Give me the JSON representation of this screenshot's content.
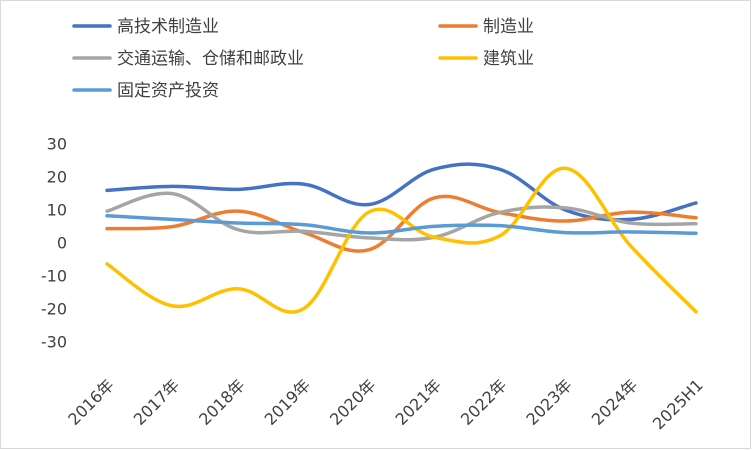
{
  "chart_data": {
    "type": "line",
    "title": "",
    "xlabel": "",
    "ylabel": "",
    "categories": [
      "2016年",
      "2017年",
      "2018年",
      "2019年",
      "2020年",
      "2021年",
      "2022年",
      "2023年",
      "2024年",
      "2025H1"
    ],
    "yticks": [
      "30",
      "20",
      "10",
      "0",
      "-10",
      "-20",
      "-30"
    ],
    "ylim": [
      -30,
      30
    ],
    "grid": false,
    "legend_position": "top",
    "series": [
      {
        "name": "高技术制造业",
        "color": "#4472C4",
        "values": [
          15.8,
          17.0,
          16.1,
          17.7,
          11.5,
          22.2,
          22.2,
          9.9,
          7.0,
          12.0
        ]
      },
      {
        "name": "制造业",
        "color": "#ED7D31",
        "values": [
          4.2,
          4.8,
          9.5,
          3.1,
          -2.2,
          13.5,
          9.1,
          6.5,
          9.2,
          7.5
        ]
      },
      {
        "name": "交通运输、仓储和邮政业",
        "color": "#A5A5A5",
        "values": [
          9.5,
          14.8,
          3.9,
          3.4,
          1.4,
          1.6,
          9.1,
          10.5,
          5.9,
          5.7
        ]
      },
      {
        "name": "建筑业",
        "color": "#FFC000",
        "values": [
          -6.5,
          -19.2,
          -14.0,
          -20.1,
          9.2,
          1.6,
          2.0,
          22.5,
          -1.0,
          -21.0
        ]
      },
      {
        "name": "固定资产投资",
        "color": "#5B9BD5",
        "values": [
          8.1,
          7.0,
          5.9,
          5.4,
          2.9,
          4.9,
          5.1,
          3.0,
          3.2,
          2.8
        ]
      }
    ]
  }
}
